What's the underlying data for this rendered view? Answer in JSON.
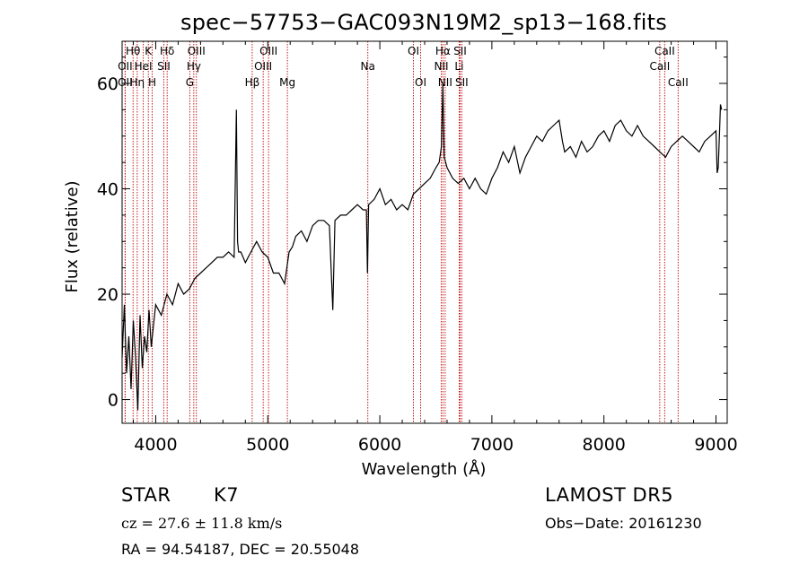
{
  "chart_data": {
    "type": "line",
    "title": "spec−57753−GAC093N19M2_sp13−168.fits",
    "xlabel": "Wavelength (Å)",
    "ylabel": "Flux (relative)",
    "xlim": [
      3700,
      9100
    ],
    "ylim": [
      -4.5,
      68
    ],
    "x_ticks": [
      4000,
      5000,
      6000,
      7000,
      8000,
      9000
    ],
    "y_ticks": [
      0,
      20,
      40,
      60
    ],
    "grid": false,
    "series": [
      {
        "x": [
          3700,
          3720,
          3740,
          3760,
          3780,
          3800,
          3820,
          3840,
          3860,
          3880,
          3900,
          3920,
          3940,
          3960,
          3980,
          4000,
          4050,
          4100,
          4150,
          4200,
          4250,
          4300,
          4350,
          4400,
          4450,
          4500,
          4550,
          4600,
          4650,
          4700,
          4720,
          4730,
          4740,
          4760,
          4800,
          4850,
          4900,
          4950,
          5000,
          5050,
          5100,
          5150,
          5190,
          5220,
          5250,
          5300,
          5350,
          5400,
          5450,
          5500,
          5550,
          5580,
          5600,
          5650,
          5700,
          5750,
          5800,
          5850,
          5880,
          5890,
          5900,
          5950,
          6000,
          6050,
          6100,
          6150,
          6200,
          6250,
          6300,
          6350,
          6400,
          6450,
          6500,
          6530,
          6550,
          6563,
          6575,
          6600,
          6650,
          6700,
          6750,
          6800,
          6850,
          6900,
          6950,
          7000,
          7050,
          7100,
          7150,
          7200,
          7250,
          7300,
          7350,
          7400,
          7450,
          7500,
          7550,
          7600,
          7630,
          7650,
          7700,
          7750,
          7800,
          7850,
          7900,
          7950,
          8000,
          8050,
          8100,
          8150,
          8200,
          8250,
          8300,
          8350,
          8400,
          8450,
          8500,
          8550,
          8600,
          8650,
          8700,
          8750,
          8800,
          8850,
          8900,
          8950,
          9000,
          9010,
          9020,
          9030,
          9040,
          9050
        ],
        "y": [
          8,
          18,
          5,
          12,
          2,
          15,
          8,
          -2,
          16,
          6,
          12,
          9,
          17,
          10,
          14,
          18,
          16,
          20,
          18,
          22,
          20,
          21,
          23,
          24,
          25,
          26,
          27,
          27,
          28,
          27,
          55,
          30,
          28,
          28,
          26,
          28,
          30,
          28,
          27,
          24,
          24,
          22,
          28,
          29,
          31,
          32,
          30,
          33,
          34,
          34,
          33,
          17,
          34,
          35,
          35,
          36,
          37,
          36,
          36,
          24,
          37,
          38,
          40,
          37,
          38,
          36,
          37,
          36,
          39,
          40,
          41,
          42,
          44,
          45,
          48,
          60,
          46,
          44,
          42,
          41,
          42,
          40,
          42,
          40,
          39,
          42,
          44,
          47,
          45,
          48,
          43,
          46,
          48,
          50,
          49,
          51,
          52,
          53,
          49,
          47,
          48,
          46,
          49,
          47,
          48,
          50,
          51,
          49,
          52,
          53,
          51,
          50,
          52,
          50,
          49,
          48,
          47,
          46,
          48,
          49,
          50,
          49,
          48,
          47,
          49,
          50,
          51,
          43,
          44,
          50,
          56,
          55
        ]
      }
    ],
    "spectral_lines": [
      {
        "label": "Hθ",
        "x": 3798,
        "row": 1
      },
      {
        "label": "OII",
        "x": 3727,
        "row": 2
      },
      {
        "label": "OII",
        "x": 3727,
        "row": 3
      },
      {
        "label": "K",
        "x": 3934,
        "row": 1
      },
      {
        "label": "HeI",
        "x": 3889,
        "row": 2
      },
      {
        "label": "Hη",
        "x": 3835,
        "row": 3
      },
      {
        "label": "H",
        "x": 3969,
        "row": 3
      },
      {
        "label": "Hδ",
        "x": 4102,
        "row": 1
      },
      {
        "label": "SII",
        "x": 4072,
        "row": 2
      },
      {
        "label": "OIII",
        "x": 4363,
        "row": 1
      },
      {
        "label": "Hγ",
        "x": 4340,
        "row": 2
      },
      {
        "label": "G",
        "x": 4304,
        "row": 3
      },
      {
        "label": "OIII",
        "x": 5007,
        "row": 1
      },
      {
        "label": "OIII",
        "x": 4959,
        "row": 2
      },
      {
        "label": "Hβ",
        "x": 4861,
        "row": 3
      },
      {
        "label": "Mg",
        "x": 5175,
        "row": 3
      },
      {
        "label": "Na",
        "x": 5893,
        "row": 2
      },
      {
        "label": "OI",
        "x": 6300,
        "row": 1
      },
      {
        "label": "OI",
        "x": 6364,
        "row": 3
      },
      {
        "label": "Hα",
        "x": 6563,
        "row": 1
      },
      {
        "label": "SII",
        "x": 6716,
        "row": 1
      },
      {
        "label": "NII",
        "x": 6548,
        "row": 2
      },
      {
        "label": "Li",
        "x": 6708,
        "row": 2
      },
      {
        "label": "NII",
        "x": 6583,
        "row": 3
      },
      {
        "label": "SII",
        "x": 6731,
        "row": 3
      },
      {
        "label": "CaII",
        "x": 8542,
        "row": 1
      },
      {
        "label": "CaII",
        "x": 8498,
        "row": 2
      },
      {
        "label": "CaII",
        "x": 8662,
        "row": 3
      }
    ]
  },
  "info": {
    "class_label": "STAR",
    "subclass_label": "K7",
    "redshift": "cz = 27.6 ± 11.8 km/s",
    "coords": "RA =  94.54187, DEC =  20.55048",
    "survey": "LAMOST DR5",
    "obs_date": "Obs−Date: 20161230"
  },
  "colors": {
    "axis": "#000000",
    "spectrum": "#000000",
    "line_markers": "#c00000"
  }
}
